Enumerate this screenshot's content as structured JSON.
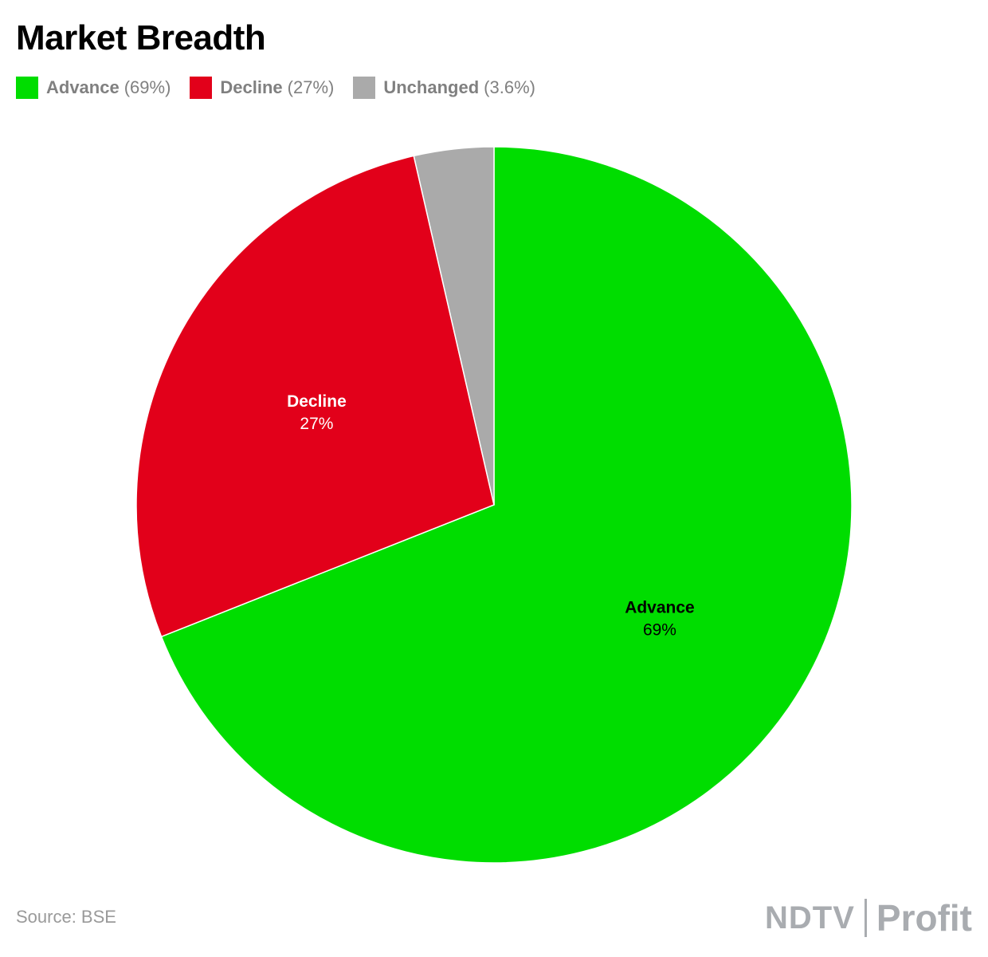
{
  "title": "Market Breadth",
  "legend": [
    {
      "name": "Advance",
      "pct": "(69%)",
      "color": "#00dd00"
    },
    {
      "name": "Decline",
      "pct": "(27%)",
      "color": "#e2001a"
    },
    {
      "name": "Unchanged",
      "pct": "(3.6%)",
      "color": "#aaaaaa"
    }
  ],
  "chart_data": {
    "type": "pie",
    "title": "Market Breadth",
    "slices": [
      {
        "name": "Advance",
        "value": 69.0,
        "label": "69%",
        "color": "#00dd00",
        "label_color": "#000000"
      },
      {
        "name": "Decline",
        "value": 27.4,
        "label": "27%",
        "color": "#e2001a",
        "label_color": "#ffffff"
      },
      {
        "name": "Unchanged",
        "value": 3.6,
        "label": "",
        "color": "#aaaaaa",
        "label_color": "#000000"
      }
    ],
    "legend_position": "top-left"
  },
  "footer": {
    "source": "Source: BSE",
    "logo_left": "NDTV",
    "logo_right": "Profit"
  }
}
